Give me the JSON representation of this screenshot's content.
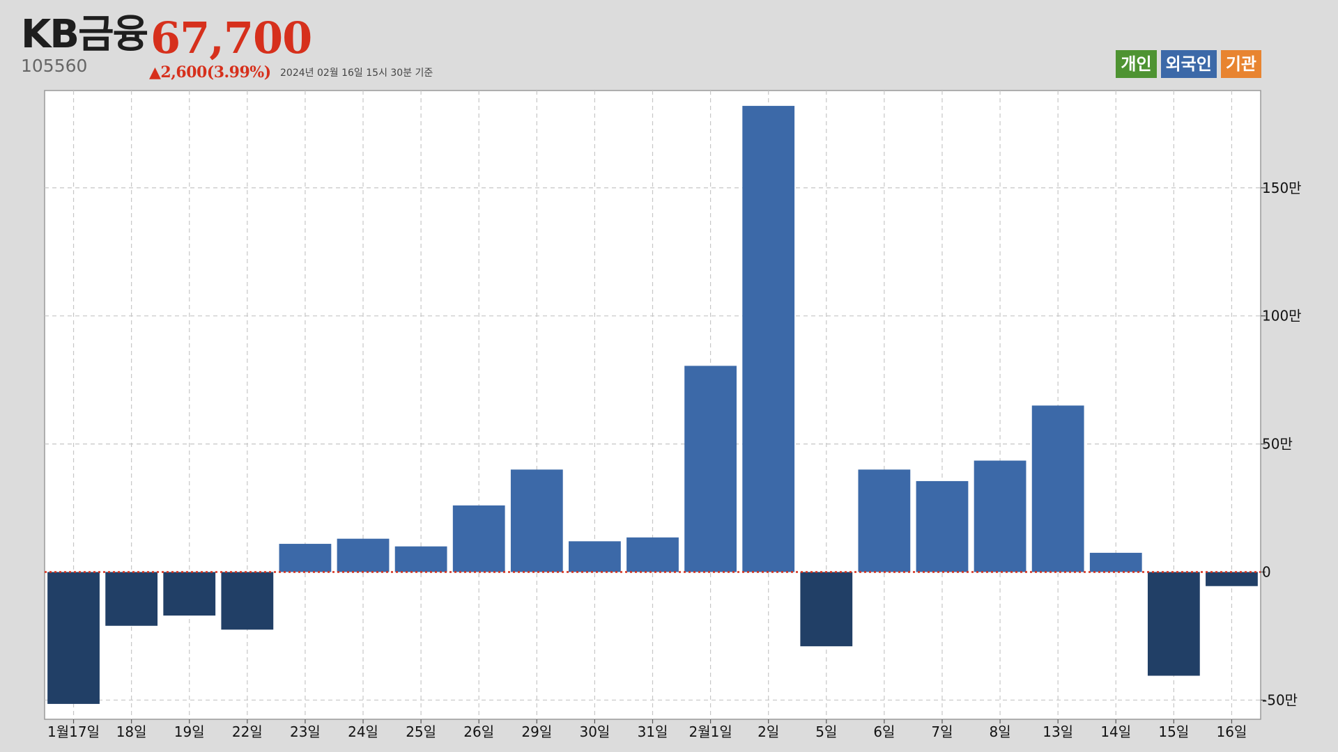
{
  "header": {
    "name": "KB금융",
    "price": "67,700",
    "code": "105560",
    "change": "▲2,600(3.99%)",
    "timestamp": "2024년 02월 16일 15시 30분 기준"
  },
  "legend": {
    "items": [
      {
        "label": "개인",
        "color": "#4e9332"
      },
      {
        "label": "외국인",
        "color": "#3c69a8"
      },
      {
        "label": "기관",
        "color": "#e88430"
      }
    ]
  },
  "colors": {
    "positive": "#3c69a8",
    "negative": "#213f66",
    "zero_line": "#d6301c",
    "plot_background": "#ffffff",
    "page_background": "#dcdcdc"
  },
  "chart_data": {
    "type": "bar",
    "categories": [
      "1월17일",
      "18일",
      "19일",
      "22일",
      "23일",
      "24일",
      "25일",
      "26일",
      "29일",
      "30일",
      "31일",
      "2월1일",
      "2일",
      "5일",
      "6일",
      "7일",
      "8일",
      "13일",
      "14일",
      "15일",
      "16일"
    ],
    "values": [
      -515000,
      -210000,
      -170000,
      -225000,
      110000,
      130000,
      100000,
      260000,
      400000,
      120000,
      135000,
      805000,
      1820000,
      -290000,
      400000,
      355000,
      435000,
      650000,
      75000,
      -405000,
      -55000
    ],
    "ylim": [
      -575000,
      1880000
    ],
    "y_ticks": [
      {
        "value": -500000,
        "label": "-50만"
      },
      {
        "value": 0,
        "label": "0"
      },
      {
        "value": 500000,
        "label": "50만"
      },
      {
        "value": 1000000,
        "label": "100만"
      },
      {
        "value": 1500000,
        "label": "150만"
      }
    ],
    "grid": true,
    "y_axis_side": "right"
  }
}
